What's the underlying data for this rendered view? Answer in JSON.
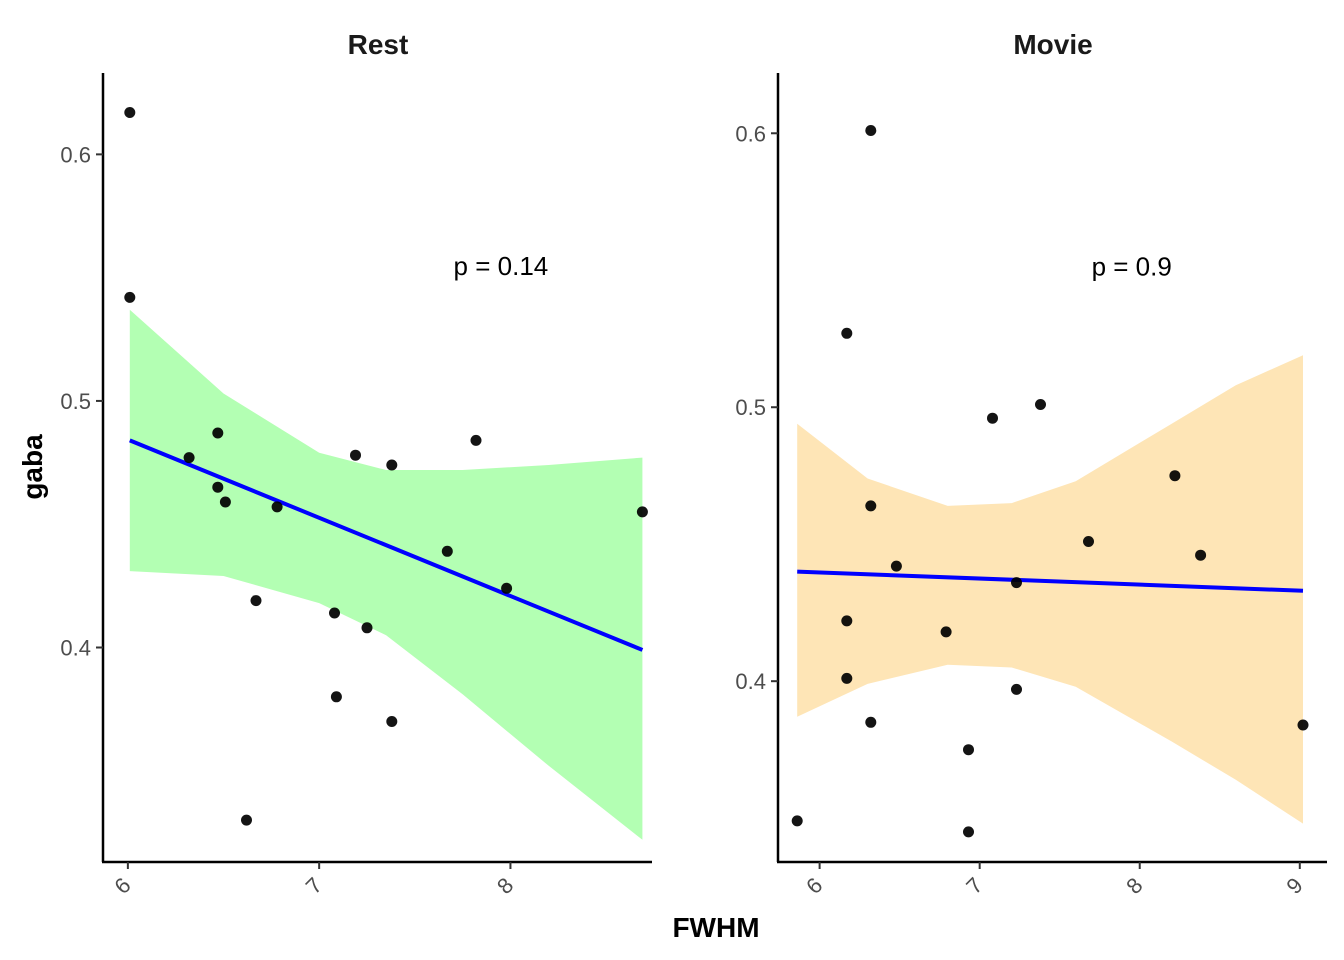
{
  "chart_data": {
    "type": "scatter",
    "xlabel": "FWHM",
    "ylabel": "gaba",
    "colors": {
      "point": "#000000",
      "fit_line": "#0000ff",
      "axis": "#000000",
      "tick_text": "#4d4d4d"
    },
    "panels": [
      {
        "title": "Rest",
        "annotation": "p =  0.14",
        "annotation_pos": [
          7.95,
          0.551
        ],
        "xlim": [
          5.87,
          8.74
        ],
        "ylim": [
          0.313,
          0.633
        ],
        "xticks": [
          6,
          7,
          8
        ],
        "xtick_labels": [
          "6",
          "7",
          "8"
        ],
        "yticks": [
          0.4,
          0.5,
          0.6
        ],
        "ytick_labels": [
          "0.4",
          "0.5",
          "0.6"
        ],
        "band_color": "#b3ffb3",
        "fit": {
          "x": [
            6.01,
            8.69
          ],
          "y": [
            0.484,
            0.399
          ]
        },
        "band": {
          "x": [
            6.01,
            6.5,
            7.0,
            7.35,
            7.75,
            8.2,
            8.69
          ],
          "lower": [
            0.431,
            0.429,
            0.418,
            0.405,
            0.381,
            0.352,
            0.322
          ],
          "upper": [
            0.537,
            0.503,
            0.479,
            0.472,
            0.472,
            0.474,
            0.477
          ]
        },
        "points": {
          "x": [
            6.01,
            6.01,
            6.32,
            6.47,
            6.47,
            6.51,
            6.67,
            6.78,
            7.08,
            7.09,
            7.19,
            7.25,
            7.38,
            7.38,
            7.67,
            7.82,
            7.98,
            6.62,
            8.69
          ],
          "y": [
            0.617,
            0.542,
            0.477,
            0.487,
            0.465,
            0.459,
            0.419,
            0.457,
            0.414,
            0.38,
            0.478,
            0.408,
            0.474,
            0.37,
            0.439,
            0.484,
            0.424,
            0.33,
            0.455
          ]
        }
      },
      {
        "title": "Movie",
        "annotation": "p =  0.9",
        "annotation_pos": [
          7.95,
          0.548
        ],
        "xlim": [
          5.74,
          9.17
        ],
        "ylim": [
          0.334,
          0.622
        ],
        "xticks": [
          6,
          7,
          8,
          9
        ],
        "xtick_labels": [
          "6",
          "7",
          "8",
          "9"
        ],
        "yticks": [
          0.4,
          0.5,
          0.6
        ],
        "ytick_labels": [
          "0.4",
          "0.5",
          "0.6"
        ],
        "band_color": "#fee5b6",
        "fit": {
          "x": [
            5.86,
            9.02
          ],
          "y": [
            0.44,
            0.433
          ]
        },
        "band": {
          "x": [
            5.86,
            6.3,
            6.8,
            7.2,
            7.6,
            8.2,
            8.6,
            9.02
          ],
          "lower": [
            0.387,
            0.399,
            0.406,
            0.405,
            0.398,
            0.378,
            0.364,
            0.348
          ],
          "upper": [
            0.494,
            0.474,
            0.464,
            0.465,
            0.473,
            0.494,
            0.508,
            0.519
          ]
        },
        "points": {
          "x": [
            5.86,
            6.17,
            6.17,
            6.17,
            6.32,
            6.32,
            6.32,
            6.48,
            6.79,
            6.93,
            6.93,
            7.08,
            7.23,
            7.23,
            7.38,
            7.68,
            8.22,
            8.38,
            9.02
          ],
          "y": [
            0.349,
            0.527,
            0.422,
            0.401,
            0.601,
            0.464,
            0.385,
            0.442,
            0.418,
            0.375,
            0.345,
            0.496,
            0.436,
            0.397,
            0.501,
            0.451,
            0.475,
            0.446,
            0.384
          ]
        }
      }
    ]
  }
}
